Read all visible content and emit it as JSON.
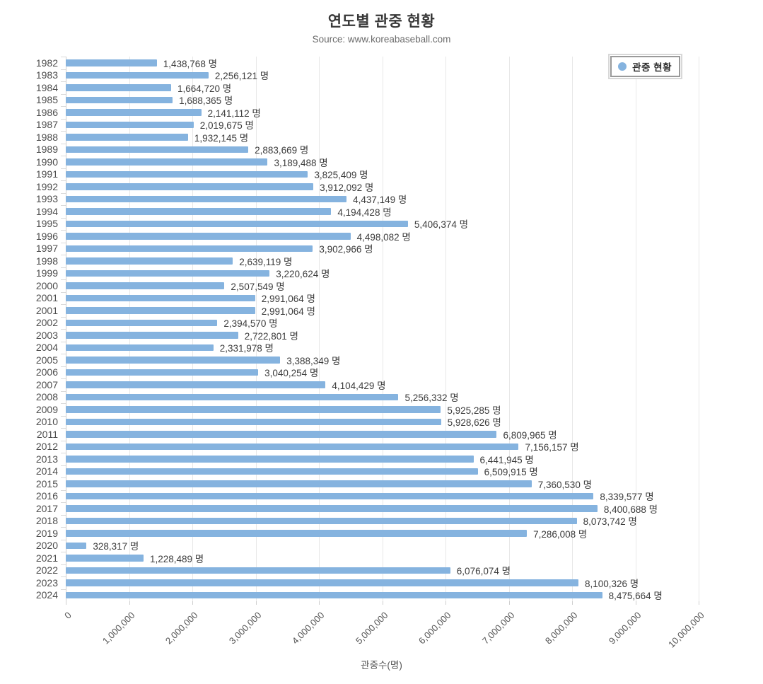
{
  "chart_data": {
    "type": "bar",
    "orientation": "horizontal",
    "title": "연도별 관중 현황",
    "subtitle": "Source: www.koreabaseball.com",
    "legend": "관중 현황",
    "legend_position": "top-right",
    "xlabel": "관중수(명)",
    "value_suffix": "명",
    "xlim": [
      0,
      10000000
    ],
    "x_tick_step": 1000000,
    "x_ticks": [
      "0",
      "1,000,000",
      "2,000,000",
      "3,000,000",
      "4,000,000",
      "5,000,000",
      "6,000,000",
      "7,000,000",
      "8,000,000",
      "9,000,000",
      "10,000,000"
    ],
    "grid": true,
    "bar_color": "#85B3DF",
    "categories": [
      "1982",
      "1983",
      "1984",
      "1985",
      "1986",
      "1987",
      "1988",
      "1989",
      "1990",
      "1991",
      "1992",
      "1993",
      "1994",
      "1995",
      "1996",
      "1997",
      "1998",
      "1999",
      "2000",
      "2001",
      "2001",
      "2002",
      "2003",
      "2004",
      "2005",
      "2006",
      "2007",
      "2008",
      "2009",
      "2010",
      "2011",
      "2012",
      "2013",
      "2014",
      "2015",
      "2016",
      "2017",
      "2018",
      "2019",
      "2020",
      "2021",
      "2022",
      "2023",
      "2024"
    ],
    "values": [
      1438768,
      2256121,
      1664720,
      1688365,
      2141112,
      2019675,
      1932145,
      2883669,
      3189488,
      3825409,
      3912092,
      4437149,
      4194428,
      5406374,
      4498082,
      3902966,
      2639119,
      3220624,
      2507549,
      2991064,
      2991064,
      2394570,
      2722801,
      2331978,
      3388349,
      3040254,
      4104429,
      5256332,
      5925285,
      5928626,
      6809965,
      7156157,
      6441945,
      6509915,
      7360530,
      8339577,
      8400688,
      8073742,
      7286008,
      328317,
      1228489,
      6076074,
      8100326,
      8475664
    ]
  }
}
